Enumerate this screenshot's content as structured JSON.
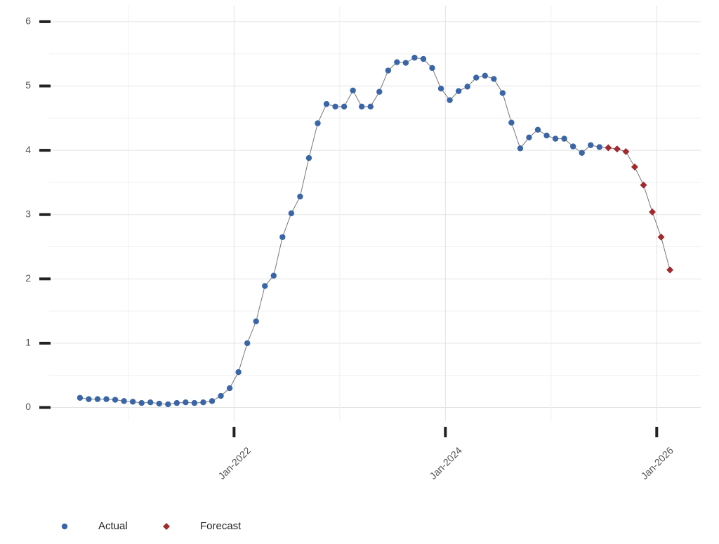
{
  "chart_data": {
    "type": "line",
    "x": [
      "2020-07",
      "2020-08",
      "2020-09",
      "2020-10",
      "2020-11",
      "2020-12",
      "2021-01",
      "2021-02",
      "2021-03",
      "2021-04",
      "2021-05",
      "2021-06",
      "2021-07",
      "2021-08",
      "2021-09",
      "2021-10",
      "2021-11",
      "2021-12",
      "2022-01",
      "2022-02",
      "2022-03",
      "2022-04",
      "2022-05",
      "2022-06",
      "2022-07",
      "2022-08",
      "2022-09",
      "2022-10",
      "2022-11",
      "2022-12",
      "2023-01",
      "2023-02",
      "2023-03",
      "2023-04",
      "2023-05",
      "2023-06",
      "2023-07",
      "2023-08",
      "2023-09",
      "2023-10",
      "2023-11",
      "2023-12",
      "2024-01",
      "2024-02",
      "2024-03",
      "2024-04",
      "2024-05",
      "2024-06",
      "2024-07",
      "2024-08",
      "2024-09",
      "2024-10",
      "2024-11",
      "2024-12",
      "2025-01",
      "2025-02",
      "2025-03",
      "2025-04",
      "2025-05",
      "2025-06",
      "2025-07",
      "2025-08",
      "2025-09",
      "2025-10",
      "2025-11",
      "2025-12",
      "2026-01",
      "2026-02"
    ],
    "series": [
      {
        "name": "Actual",
        "color": "#3a66a8",
        "marker": "circle",
        "values": [
          0.15,
          0.13,
          0.13,
          0.13,
          0.12,
          0.1,
          0.09,
          0.07,
          0.08,
          0.06,
          0.05,
          0.07,
          0.08,
          0.07,
          0.08,
          0.1,
          0.18,
          0.3,
          0.55,
          1.0,
          1.34,
          1.89,
          2.05,
          2.65,
          3.02,
          3.28,
          3.88,
          4.42,
          4.72,
          4.68,
          4.68,
          4.93,
          4.68,
          4.68,
          4.91,
          5.24,
          5.37,
          5.36,
          5.44,
          5.42,
          5.28,
          4.96,
          4.78,
          4.92,
          4.99,
          5.13,
          5.16,
          5.11,
          4.89,
          4.43,
          4.03,
          4.2,
          4.32,
          4.23,
          4.18,
          4.18,
          4.06,
          3.96,
          4.08,
          4.05,
          null,
          null,
          null,
          null,
          null,
          null,
          null,
          null
        ]
      },
      {
        "name": "Forecast",
        "color": "#a02a2e",
        "marker": "diamond",
        "values": [
          null,
          null,
          null,
          null,
          null,
          null,
          null,
          null,
          null,
          null,
          null,
          null,
          null,
          null,
          null,
          null,
          null,
          null,
          null,
          null,
          null,
          null,
          null,
          null,
          null,
          null,
          null,
          null,
          null,
          null,
          null,
          null,
          null,
          null,
          null,
          null,
          null,
          null,
          null,
          null,
          null,
          null,
          null,
          null,
          null,
          null,
          null,
          null,
          null,
          null,
          null,
          null,
          null,
          null,
          null,
          null,
          null,
          null,
          null,
          null,
          4.04,
          4.02,
          3.98,
          3.74,
          3.46,
          3.04,
          2.65,
          2.14
        ]
      }
    ],
    "xlim": [
      "2020-04",
      "2026-06"
    ],
    "xticks": [
      {
        "value": "2022-01",
        "label": "Jan-2022"
      },
      {
        "value": "2024-01",
        "label": "Jan-2024"
      },
      {
        "value": "2026-01",
        "label": "Jan-2026"
      }
    ],
    "ylim": [
      -0.3,
      6.25
    ],
    "yticks": [
      0,
      1,
      2,
      3,
      4,
      5,
      6
    ],
    "grid": true,
    "legend": "bottom-left"
  }
}
